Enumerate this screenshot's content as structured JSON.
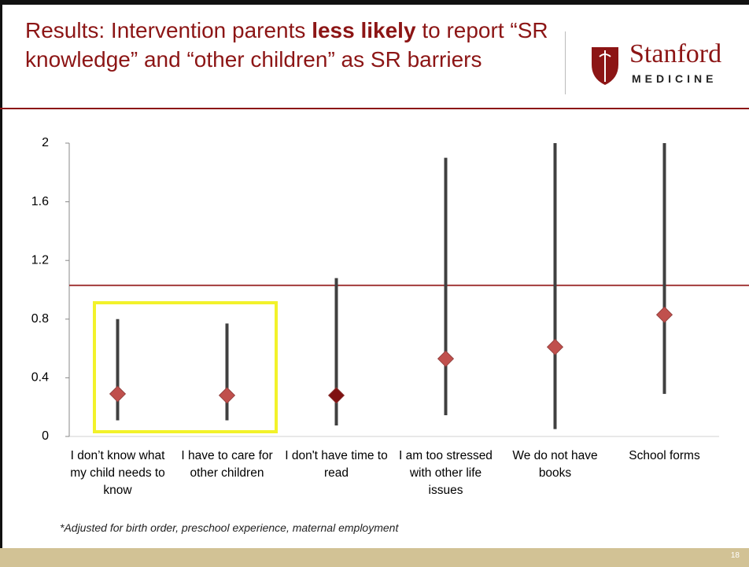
{
  "header": {
    "title": [
      "Results: Intervention parents ",
      "less likely",
      " to report “SR knowledge” and “other children” as SR barriers"
    ],
    "logo_name": "Stanford",
    "logo_sub": "MEDICINE"
  },
  "chart_data": {
    "type": "errorbar",
    "categories": [
      "I don’t know what my child needs to know",
      "I have to care for other children",
      "I don't have time to read",
      "I am too stressed with other life issues",
      "We do not have books",
      "School forms"
    ],
    "values": [
      0.29,
      0.28,
      0.28,
      0.53,
      0.61,
      0.83
    ],
    "lower": [
      0.11,
      0.11,
      0.075,
      0.145,
      0.05,
      0.29
    ],
    "upper": [
      0.8,
      0.77,
      1.08,
      1.9,
      2,
      2
    ],
    "colors": [
      "#c0504d",
      "#c0504d",
      "#7f1111",
      "#c0504d",
      "#c0504d",
      "#c0504d"
    ],
    "bar_color": "#404040",
    "reference_line": 1.03,
    "reference_color": "#a33a3a",
    "ylim": [
      0,
      2
    ],
    "yticks": [
      0,
      0.4,
      0.8,
      1.2,
      1.6,
      2
    ]
  },
  "footnote": "*Adjusted for birth order, preschool experience, maternal employment",
  "page_number": "18"
}
